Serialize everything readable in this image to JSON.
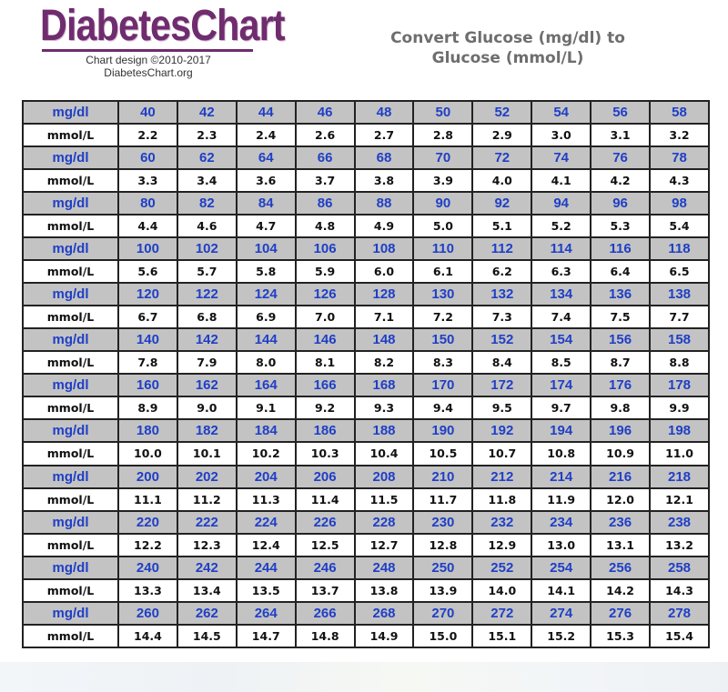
{
  "logo": {
    "wordmark": "DiabetesChart",
    "credit_line1": "Chart design ©2010-2017",
    "credit_line2": "DiabetesChart.org"
  },
  "heading": {
    "line1": "Convert Glucose (mg/dl) to",
    "line2": "Glucose (mmol/L)"
  },
  "colors": {
    "brand": "#6f2c6e",
    "mgdl_text": "#1f3fc7",
    "mgdl_bg": "#c3c3c3",
    "grid_border": "#222222"
  },
  "chart_data": {
    "type": "table",
    "row_labels": [
      "mg/dl",
      "mmol/L"
    ],
    "rows": [
      {
        "mgdl": [
          "40",
          "42",
          "44",
          "46",
          "48",
          "50",
          "52",
          "54",
          "56",
          "58"
        ],
        "mmol": [
          "2.2",
          "2.3",
          "2.4",
          "2.6",
          "2.7",
          "2.8",
          "2.9",
          "3.0",
          "3.1",
          "3.2"
        ]
      },
      {
        "mgdl": [
          "60",
          "62",
          "64",
          "66",
          "68",
          "70",
          "72",
          "74",
          "76",
          "78"
        ],
        "mmol": [
          "3.3",
          "3.4",
          "3.6",
          "3.7",
          "3.8",
          "3.9",
          "4.0",
          "4.1",
          "4.2",
          "4.3"
        ]
      },
      {
        "mgdl": [
          "80",
          "82",
          "84",
          "86",
          "88",
          "90",
          "92",
          "94",
          "96",
          "98"
        ],
        "mmol": [
          "4.4",
          "4.6",
          "4.7",
          "4.8",
          "4.9",
          "5.0",
          "5.1",
          "5.2",
          "5.3",
          "5.4"
        ]
      },
      {
        "mgdl": [
          "100",
          "102",
          "104",
          "106",
          "108",
          "110",
          "112",
          "114",
          "116",
          "118"
        ],
        "mmol": [
          "5.6",
          "5.7",
          "5.8",
          "5.9",
          "6.0",
          "6.1",
          "6.2",
          "6.3",
          "6.4",
          "6.5"
        ]
      },
      {
        "mgdl": [
          "120",
          "122",
          "124",
          "126",
          "128",
          "130",
          "132",
          "134",
          "136",
          "138"
        ],
        "mmol": [
          "6.7",
          "6.8",
          "6.9",
          "7.0",
          "7.1",
          "7.2",
          "7.3",
          "7.4",
          "7.5",
          "7.7"
        ]
      },
      {
        "mgdl": [
          "140",
          "142",
          "144",
          "146",
          "148",
          "150",
          "152",
          "154",
          "156",
          "158"
        ],
        "mmol": [
          "7.8",
          "7.9",
          "8.0",
          "8.1",
          "8.2",
          "8.3",
          "8.4",
          "8.5",
          "8.7",
          "8.8"
        ]
      },
      {
        "mgdl": [
          "160",
          "162",
          "164",
          "166",
          "168",
          "170",
          "172",
          "174",
          "176",
          "178"
        ],
        "mmol": [
          "8.9",
          "9.0",
          "9.1",
          "9.2",
          "9.3",
          "9.4",
          "9.5",
          "9.7",
          "9.8",
          "9.9"
        ]
      },
      {
        "mgdl": [
          "180",
          "182",
          "184",
          "186",
          "188",
          "190",
          "192",
          "194",
          "196",
          "198"
        ],
        "mmol": [
          "10.0",
          "10.1",
          "10.2",
          "10.3",
          "10.4",
          "10.5",
          "10.7",
          "10.8",
          "10.9",
          "11.0"
        ]
      },
      {
        "mgdl": [
          "200",
          "202",
          "204",
          "206",
          "208",
          "210",
          "212",
          "214",
          "216",
          "218"
        ],
        "mmol": [
          "11.1",
          "11.2",
          "11.3",
          "11.4",
          "11.5",
          "11.7",
          "11.8",
          "11.9",
          "12.0",
          "12.1"
        ]
      },
      {
        "mgdl": [
          "220",
          "222",
          "224",
          "226",
          "228",
          "230",
          "232",
          "234",
          "236",
          "238"
        ],
        "mmol": [
          "12.2",
          "12.3",
          "12.4",
          "12.5",
          "12.7",
          "12.8",
          "12.9",
          "13.0",
          "13.1",
          "13.2"
        ]
      },
      {
        "mgdl": [
          "240",
          "242",
          "244",
          "246",
          "248",
          "250",
          "252",
          "254",
          "256",
          "258"
        ],
        "mmol": [
          "13.3",
          "13.4",
          "13.5",
          "13.7",
          "13.8",
          "13.9",
          "14.0",
          "14.1",
          "14.2",
          "14.3"
        ]
      },
      {
        "mgdl": [
          "260",
          "262",
          "264",
          "266",
          "268",
          "270",
          "272",
          "274",
          "276",
          "278"
        ],
        "mmol": [
          "14.4",
          "14.5",
          "14.7",
          "14.8",
          "14.9",
          "15.0",
          "15.1",
          "15.2",
          "15.3",
          "15.4"
        ]
      }
    ]
  }
}
